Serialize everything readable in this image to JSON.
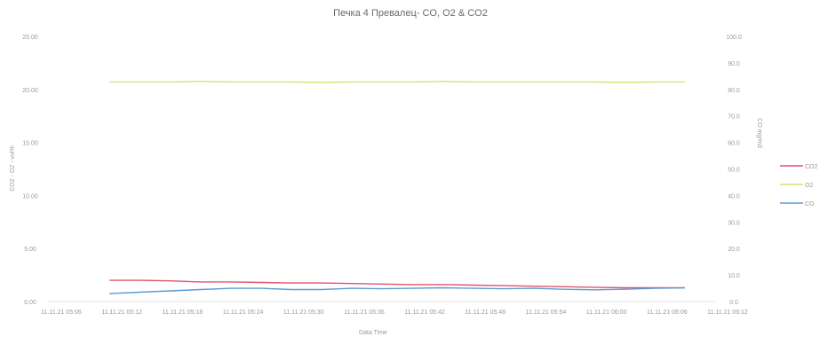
{
  "chart_data": {
    "type": "line",
    "title": "Печка 4 Превалец- CO, O2 & CO2",
    "xlabel": "Data Time",
    "ylabel_left": "CO2 - O2 - vol%",
    "ylabel_right": "CO mg/m3",
    "ylim_left": [
      0,
      25
    ],
    "ylim_right": [
      0,
      100
    ],
    "yticks_left": [
      "0.00",
      "5.00",
      "10.00",
      "15.00",
      "20.00",
      "25.00"
    ],
    "yticks_right": [
      "0.0",
      "10.0",
      "20.0",
      "30.0",
      "40.0",
      "50.0",
      "60.0",
      "70.0",
      "80.0",
      "90.0",
      "100.0"
    ],
    "x_ticks": [
      "11.11.21 05:06",
      "11.11.21 05:12",
      "11.11.21 05:18",
      "11.11.21 05:24",
      "11.11.21 05:30",
      "11.11.21 05:36",
      "11.11.21 05:42",
      "11.11.21 05:48",
      "11.11.21 05:54",
      "11.11.21 06:00",
      "11.11.21 06:06",
      "11.11.21 06:12"
    ],
    "x_range": [
      0,
      11
    ],
    "legend_position": "right",
    "series": [
      {
        "name": "CO2",
        "axis": "left",
        "color": "#e0536e",
        "x": [
          1,
          1.5,
          2,
          2.5,
          3,
          3.5,
          4,
          4.5,
          5,
          5.5,
          6,
          6.5,
          7,
          7.5,
          8,
          8.5,
          9,
          9.5,
          10,
          10.5
        ],
        "values": [
          2.0,
          2.0,
          1.95,
          1.85,
          1.85,
          1.8,
          1.75,
          1.75,
          1.7,
          1.65,
          1.6,
          1.6,
          1.55,
          1.5,
          1.45,
          1.4,
          1.35,
          1.3,
          1.3,
          1.3
        ]
      },
      {
        "name": "O2",
        "axis": "left",
        "color": "#d8df7a",
        "x": [
          1,
          1.5,
          2,
          2.5,
          3,
          3.5,
          4,
          4.5,
          5,
          5.5,
          6,
          6.5,
          7,
          7.5,
          8,
          8.5,
          9,
          9.5,
          10,
          10.5
        ],
        "values": [
          20.7,
          20.7,
          20.7,
          20.75,
          20.7,
          20.7,
          20.7,
          20.65,
          20.7,
          20.7,
          20.7,
          20.75,
          20.7,
          20.7,
          20.7,
          20.7,
          20.7,
          20.65,
          20.7,
          20.7
        ]
      },
      {
        "name": "CO",
        "axis": "right",
        "color": "#5b9bd5",
        "x": [
          1,
          1.5,
          2,
          2.5,
          3,
          3.5,
          4,
          4.5,
          5,
          5.5,
          6,
          6.5,
          7,
          7.5,
          8,
          8.5,
          9,
          9.5,
          10,
          10.5
        ],
        "values": [
          3.0,
          3.5,
          4.0,
          4.5,
          5.0,
          5.0,
          4.5,
          4.5,
          5.0,
          4.8,
          5.0,
          5.2,
          5.0,
          4.8,
          5.0,
          4.6,
          4.4,
          4.6,
          5.0,
          5.2
        ]
      }
    ]
  }
}
